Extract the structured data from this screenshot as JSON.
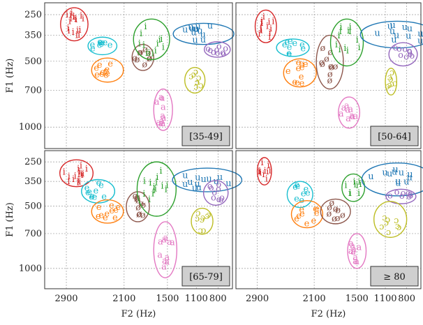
{
  "chart_data": {
    "type": "scatter",
    "xlabel": "F2 (Hz)",
    "ylabel": "F1 (Hz)",
    "x_ticks": [
      2900,
      2100,
      1500,
      1100,
      800
    ],
    "y_ticks": [
      250,
      350,
      500,
      700,
      1000
    ],
    "colors": {
      "i": "#d62728",
      "e": "#17becf",
      "ɛ": "#ff7f0e",
      "ø": "#8c564b",
      "y": "#2ca02c",
      "u": "#1f77b4",
      "o": "#9467bd",
      "ɔ": "#bcbd22",
      "a": "#e377c2"
    },
    "panels": [
      {
        "label": "[35-49]",
        "clusters": [
          {
            "vowel": "i",
            "glyph": "i",
            "cx": 2790,
            "cy": 300,
            "rx": 190,
            "ry": 80,
            "n": 18
          },
          {
            "vowel": "e",
            "glyph": "e",
            "cx": 2400,
            "cy": 410,
            "rx": 200,
            "ry": 50,
            "n": 9
          },
          {
            "vowel": "ɛ",
            "glyph": "e",
            "cx": 2330,
            "cy": 560,
            "rx": 220,
            "ry": 80,
            "n": 10
          },
          {
            "vowel": "ø",
            "glyph": "ø",
            "cx": 1840,
            "cy": 480,
            "rx": 150,
            "ry": 80,
            "n": 9
          },
          {
            "vowel": "y",
            "glyph": "i",
            "cx": 1720,
            "cy": 380,
            "rx": 250,
            "ry": 110,
            "n": 12
          },
          {
            "vowel": "u",
            "glyph": "u",
            "cx": 1000,
            "cy": 345,
            "rx": 420,
            "ry": 55,
            "n": 12
          },
          {
            "vowel": "o",
            "glyph": "o",
            "cx": 810,
            "cy": 430,
            "rx": 180,
            "ry": 45,
            "n": 9
          },
          {
            "vowel": "ɔ",
            "glyph": "ɔ",
            "cx": 1120,
            "cy": 630,
            "rx": 140,
            "ry": 90,
            "n": 8
          },
          {
            "vowel": "a",
            "glyph": "a",
            "cx": 1560,
            "cy": 860,
            "rx": 130,
            "ry": 170,
            "n": 10
          }
        ]
      },
      {
        "label": "[50-64]",
        "clusters": [
          {
            "vowel": "i",
            "glyph": "i",
            "cx": 2780,
            "cy": 310,
            "rx": 150,
            "ry": 80,
            "n": 14
          },
          {
            "vowel": "e",
            "glyph": "e",
            "cx": 2400,
            "cy": 420,
            "rx": 230,
            "ry": 50,
            "n": 9
          },
          {
            "vowel": "ɛ",
            "glyph": "e",
            "cx": 2300,
            "cy": 580,
            "rx": 230,
            "ry": 95,
            "n": 10
          },
          {
            "vowel": "ø",
            "glyph": "ø",
            "cx": 1880,
            "cy": 520,
            "rx": 190,
            "ry": 170,
            "n": 10
          },
          {
            "vowel": "y",
            "glyph": "i",
            "cx": 1640,
            "cy": 400,
            "rx": 230,
            "ry": 130,
            "n": 12
          },
          {
            "vowel": "u",
            "glyph": "u",
            "cx": 930,
            "cy": 350,
            "rx": 520,
            "ry": 70,
            "n": 12
          },
          {
            "vowel": "o",
            "glyph": "o",
            "cx": 850,
            "cy": 460,
            "rx": 200,
            "ry": 70,
            "n": 9
          },
          {
            "vowel": "ɔ",
            "glyph": "ɔ",
            "cx": 1020,
            "cy": 640,
            "rx": 80,
            "ry": 95,
            "n": 7
          },
          {
            "vowel": "a",
            "glyph": "a",
            "cx": 1610,
            "cy": 880,
            "rx": 150,
            "ry": 130,
            "n": 9
          }
        ]
      },
      {
        "label": "[65-79]",
        "clusters": [
          {
            "vowel": "i",
            "glyph": "i",
            "cx": 2760,
            "cy": 310,
            "rx": 230,
            "ry": 70,
            "n": 16
          },
          {
            "vowel": "e",
            "glyph": "e",
            "cx": 2460,
            "cy": 410,
            "rx": 230,
            "ry": 70,
            "n": 10
          },
          {
            "vowel": "ɛ",
            "glyph": "e",
            "cx": 2330,
            "cy": 540,
            "rx": 220,
            "ry": 80,
            "n": 10
          },
          {
            "vowel": "ø",
            "glyph": "ø",
            "cx": 1910,
            "cy": 510,
            "rx": 160,
            "ry": 100,
            "n": 10
          },
          {
            "vowel": "y",
            "glyph": "i",
            "cx": 1650,
            "cy": 410,
            "rx": 270,
            "ry": 160,
            "n": 14
          },
          {
            "vowel": "u",
            "glyph": "u",
            "cx": 950,
            "cy": 345,
            "rx": 480,
            "ry": 65,
            "n": 12
          },
          {
            "vowel": "o",
            "glyph": "o",
            "cx": 830,
            "cy": 420,
            "rx": 170,
            "ry": 75,
            "n": 9
          },
          {
            "vowel": "ɔ",
            "glyph": "ɔ",
            "cx": 1020,
            "cy": 610,
            "rx": 150,
            "ry": 95,
            "n": 8
          },
          {
            "vowel": "a",
            "glyph": "a",
            "cx": 1530,
            "cy": 850,
            "rx": 160,
            "ry": 240,
            "n": 10
          }
        ]
      },
      {
        "label": "≥ 80",
        "clusters": [
          {
            "vowel": "i",
            "glyph": "i",
            "cx": 2800,
            "cy": 300,
            "rx": 100,
            "ry": 70,
            "n": 10
          },
          {
            "vowel": "e",
            "glyph": "e",
            "cx": 2300,
            "cy": 430,
            "rx": 180,
            "ry": 80,
            "n": 8
          },
          {
            "vowel": "ɛ",
            "glyph": "e",
            "cx": 2200,
            "cy": 560,
            "rx": 220,
            "ry": 95,
            "n": 9
          },
          {
            "vowel": "ø",
            "glyph": "ø",
            "cx": 1800,
            "cy": 540,
            "rx": 210,
            "ry": 85,
            "n": 8
          },
          {
            "vowel": "y",
            "glyph": "i",
            "cx": 1550,
            "cy": 390,
            "rx": 160,
            "ry": 80,
            "n": 9
          },
          {
            "vowel": "u",
            "glyph": "u",
            "cx": 930,
            "cy": 345,
            "rx": 500,
            "ry": 90,
            "n": 11
          },
          {
            "vowel": "o",
            "glyph": "o",
            "cx": 880,
            "cy": 440,
            "rx": 210,
            "ry": 45,
            "n": 8
          },
          {
            "vowel": "ɔ",
            "glyph": "ɔ",
            "cx": 1030,
            "cy": 600,
            "rx": 230,
            "ry": 130,
            "n": 8
          },
          {
            "vowel": "a",
            "glyph": "a",
            "cx": 1500,
            "cy": 850,
            "rx": 130,
            "ry": 150,
            "n": 9
          }
        ]
      }
    ]
  }
}
